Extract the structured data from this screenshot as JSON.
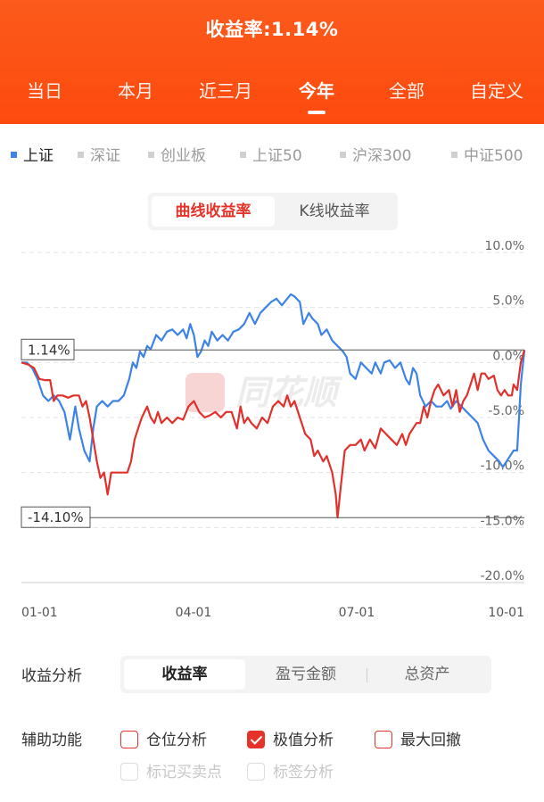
{
  "header": {
    "title": "收益率:1.14%",
    "tabs": [
      "当日",
      "本月",
      "近三月",
      "今年",
      "全部",
      "自定义"
    ],
    "active_tab": "今年"
  },
  "indices": {
    "items": [
      "上证",
      "深证",
      "创业板",
      "上证50",
      "沪深300",
      "中证500"
    ],
    "active": "上证"
  },
  "chart_mode": {
    "options": [
      "曲线收益率",
      "K线收益率"
    ],
    "selected": "曲线收益率"
  },
  "chart_data": {
    "type": "line",
    "x_ticks": [
      "01-01",
      "04-01",
      "07-01",
      "10-01"
    ],
    "y_ticks": [
      "10.0%",
      "5.0%",
      "0.0%",
      "-5.0%",
      "-10.0%",
      "-15.0%",
      "-20.0%"
    ],
    "ylim": [
      -20,
      10
    ],
    "x_range": [
      0,
      280
    ],
    "grid": true,
    "watermark": "同花顺",
    "reference_lines": [
      {
        "label": "1.14%",
        "value": 1.14
      },
      {
        "label": "-14.10%",
        "value": -14.1
      }
    ],
    "series": [
      {
        "name": "上证",
        "color": "#3d82e6",
        "points": [
          [
            0,
            0
          ],
          [
            3,
            0
          ],
          [
            6,
            -0.5
          ],
          [
            9,
            -1.5
          ],
          [
            12,
            -3
          ],
          [
            15,
            -3.5
          ],
          [
            18,
            -3
          ],
          [
            21,
            -3.5
          ],
          [
            24,
            -4.5
          ],
          [
            27,
            -7
          ],
          [
            30,
            -4
          ],
          [
            32,
            -6
          ],
          [
            35,
            -8
          ],
          [
            38,
            -9
          ],
          [
            40,
            -6
          ],
          [
            42,
            -4
          ],
          [
            45,
            -3.5
          ],
          [
            48,
            -4
          ],
          [
            51,
            -3.5
          ],
          [
            54,
            -3.5
          ],
          [
            57,
            -3
          ],
          [
            60,
            -1.5
          ],
          [
            62,
            0
          ],
          [
            64,
            -0.5
          ],
          [
            66,
            1
          ],
          [
            68,
            0.5
          ],
          [
            70,
            1.5
          ],
          [
            72,
            1.2
          ],
          [
            75,
            2.5
          ],
          [
            78,
            2
          ],
          [
            81,
            2.8
          ],
          [
            84,
            3
          ],
          [
            87,
            2.5
          ],
          [
            90,
            3
          ],
          [
            92,
            2.2
          ],
          [
            94,
            3.5
          ],
          [
            96,
            2.5
          ],
          [
            98,
            0.5
          ],
          [
            100,
            1
          ],
          [
            102,
            2
          ],
          [
            104,
            1.5
          ],
          [
            106,
            2.8
          ],
          [
            109,
            2
          ],
          [
            112,
            2.5
          ],
          [
            115,
            2
          ],
          [
            118,
            2.8
          ],
          [
            121,
            3
          ],
          [
            124,
            3.5
          ],
          [
            127,
            4.5
          ],
          [
            130,
            3.5
          ],
          [
            133,
            4.5
          ],
          [
            136,
            5
          ],
          [
            139,
            5.5
          ],
          [
            142,
            5.8
          ],
          [
            145,
            5.2
          ],
          [
            148,
            5.8
          ],
          [
            150,
            6.2
          ],
          [
            152,
            6
          ],
          [
            155,
            5.5
          ],
          [
            157,
            3.5
          ],
          [
            160,
            4.5
          ],
          [
            162,
            4
          ],
          [
            165,
            3.5
          ],
          [
            167,
            2.5
          ],
          [
            170,
            3
          ],
          [
            173,
            2
          ],
          [
            176,
            1.5
          ],
          [
            179,
            1
          ],
          [
            181,
            0.5
          ],
          [
            183,
            -1
          ],
          [
            186,
            -1.5
          ],
          [
            189,
            0
          ],
          [
            192,
            -0.5
          ],
          [
            195,
            -1
          ],
          [
            197,
            0
          ],
          [
            200,
            -1
          ],
          [
            202,
            0
          ],
          [
            205,
            0.2
          ],
          [
            208,
            -0.5
          ],
          [
            211,
            0
          ],
          [
            214,
            -1.5
          ],
          [
            216,
            -2
          ],
          [
            218,
            -0.5
          ],
          [
            220,
            -1
          ],
          [
            222,
            -3
          ],
          [
            225,
            -4
          ],
          [
            228,
            -3.5
          ],
          [
            231,
            -4
          ],
          [
            234,
            -4
          ],
          [
            237,
            -3.5
          ],
          [
            239,
            -4.2
          ],
          [
            242,
            -3.5
          ],
          [
            245,
            -4
          ],
          [
            248,
            -4.5
          ],
          [
            251,
            -5
          ],
          [
            254,
            -5.5
          ],
          [
            257,
            -7
          ],
          [
            260,
            -8
          ],
          [
            263,
            -8.5
          ],
          [
            266,
            -9
          ],
          [
            268,
            -9.5
          ],
          [
            270,
            -9
          ],
          [
            272,
            -8.5
          ],
          [
            274,
            -8
          ],
          [
            276,
            -8
          ],
          [
            277,
            -5
          ],
          [
            278,
            -2
          ],
          [
            280,
            1.1
          ]
        ]
      },
      {
        "name": "收益率",
        "color": "#e0312c",
        "points": [
          [
            0,
            0
          ],
          [
            4,
            -0.2
          ],
          [
            7,
            -0.5
          ],
          [
            10,
            -1.5
          ],
          [
            13,
            -1.6
          ],
          [
            16,
            -1.6
          ],
          [
            18,
            -3.5
          ],
          [
            20,
            -3
          ],
          [
            23,
            -3
          ],
          [
            26,
            -3.2
          ],
          [
            29,
            -3
          ],
          [
            32,
            -3
          ],
          [
            34,
            -4
          ],
          [
            36,
            -3.5
          ],
          [
            38,
            -5
          ],
          [
            40,
            -7
          ],
          [
            42,
            -9
          ],
          [
            44,
            -10.5
          ],
          [
            46,
            -10
          ],
          [
            48,
            -12
          ],
          [
            50,
            -10
          ],
          [
            53,
            -10
          ],
          [
            56,
            -10
          ],
          [
            59,
            -10
          ],
          [
            61,
            -9
          ],
          [
            63,
            -7
          ],
          [
            65,
            -6
          ],
          [
            67,
            -5
          ],
          [
            70,
            -4
          ],
          [
            72,
            -5
          ],
          [
            74,
            -5.5
          ],
          [
            76,
            -4.5
          ],
          [
            78,
            -5.5
          ],
          [
            81,
            -5
          ],
          [
            84,
            -5.5
          ],
          [
            87,
            -5
          ],
          [
            90,
            -5.2
          ],
          [
            93,
            -4
          ],
          [
            96,
            -3.5
          ],
          [
            99,
            -4.5
          ],
          [
            102,
            -5
          ],
          [
            105,
            -4.8
          ],
          [
            108,
            -4.5
          ],
          [
            111,
            -5
          ],
          [
            114,
            -4.5
          ],
          [
            117,
            -4.5
          ],
          [
            120,
            -6
          ],
          [
            122,
            -4
          ],
          [
            124,
            -5.5
          ],
          [
            126,
            -5
          ],
          [
            128,
            -5.5
          ],
          [
            131,
            -6
          ],
          [
            134,
            -5
          ],
          [
            137,
            -5.5
          ],
          [
            140,
            -4
          ],
          [
            143,
            -3.5
          ],
          [
            146,
            -4
          ],
          [
            148,
            -3
          ],
          [
            150,
            -4
          ],
          [
            152,
            -3.5
          ],
          [
            155,
            -5
          ],
          [
            158,
            -6.5
          ],
          [
            161,
            -7
          ],
          [
            163,
            -8.5
          ],
          [
            165,
            -8
          ],
          [
            168,
            -9
          ],
          [
            170,
            -8.5
          ],
          [
            173,
            -10
          ],
          [
            175,
            -12
          ],
          [
            176,
            -14.1
          ],
          [
            178,
            -11
          ],
          [
            180,
            -8
          ],
          [
            183,
            -7.5
          ],
          [
            186,
            -7.5
          ],
          [
            189,
            -7
          ],
          [
            191,
            -8
          ],
          [
            194,
            -7
          ],
          [
            197,
            -7.8
          ],
          [
            200,
            -6
          ],
          [
            203,
            -6.5
          ],
          [
            206,
            -7
          ],
          [
            209,
            -7.5
          ],
          [
            212,
            -6.5
          ],
          [
            214,
            -7.5
          ],
          [
            216,
            -6.5
          ],
          [
            218,
            -6
          ],
          [
            220,
            -5.5
          ],
          [
            222,
            -5.5
          ],
          [
            224,
            -4
          ],
          [
            226,
            -5
          ],
          [
            228,
            -3.5
          ],
          [
            230,
            -2.5
          ],
          [
            232,
            -2
          ],
          [
            235,
            -3
          ],
          [
            238,
            -2.5
          ],
          [
            240,
            -4
          ],
          [
            242,
            -2.5
          ],
          [
            244,
            -4.5
          ],
          [
            246,
            -3.5
          ],
          [
            248,
            -3
          ],
          [
            250,
            -2
          ],
          [
            252,
            -1
          ],
          [
            254,
            -2.5
          ],
          [
            256,
            -1
          ],
          [
            258,
            -1
          ],
          [
            260,
            -1.5
          ],
          [
            263,
            -1.2
          ],
          [
            265,
            -2.5
          ],
          [
            267,
            -3
          ],
          [
            269,
            -2.5
          ],
          [
            271,
            -3
          ],
          [
            273,
            -3
          ],
          [
            274,
            -2
          ],
          [
            276,
            -2.5
          ],
          [
            278,
            0
          ],
          [
            280,
            1.14
          ]
        ]
      }
    ]
  },
  "analysis": {
    "label": "收益分析",
    "options": [
      "收益率",
      "盈亏金额",
      "总资产"
    ],
    "selected": "收益率"
  },
  "aux": {
    "label": "辅助功能",
    "options": [
      {
        "label": "仓位分析",
        "checked": false,
        "enabled": true
      },
      {
        "label": "极值分析",
        "checked": true,
        "enabled": true
      },
      {
        "label": "最大回撤",
        "checked": false,
        "enabled": true
      },
      {
        "label": "标记买卖点",
        "checked": false,
        "enabled": false
      },
      {
        "label": "标签分析",
        "checked": false,
        "enabled": false
      }
    ]
  }
}
